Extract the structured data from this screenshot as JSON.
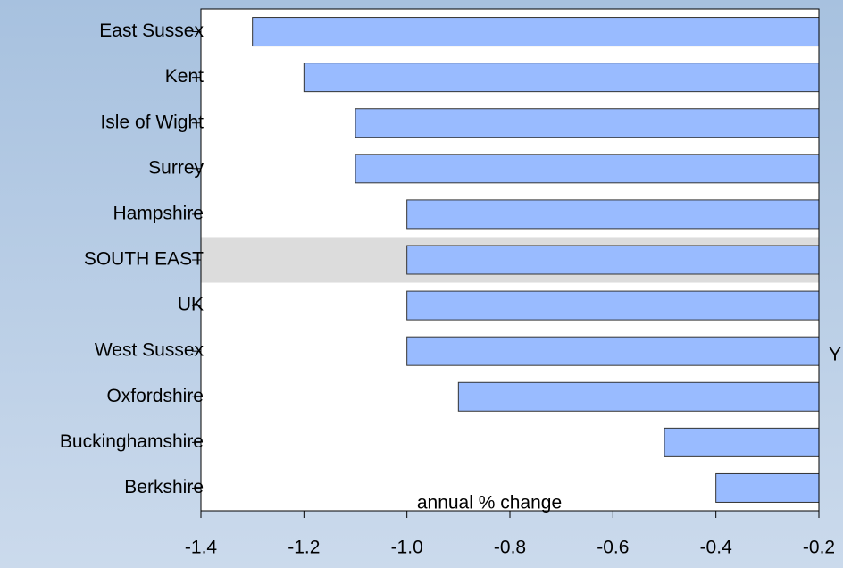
{
  "chart_data": {
    "type": "bar",
    "orientation": "horizontal",
    "categories": [
      "East Sussex",
      "Kent",
      "Isle of Wight",
      "Surrey",
      "Hampshire",
      "SOUTH EAST",
      "UK",
      "West Sussex",
      "Oxfordshire",
      "Buckinghamshire",
      "Berkshire"
    ],
    "values": [
      -1.3,
      -1.2,
      -1.1,
      -1.1,
      -1.0,
      -1.0,
      -1.0,
      -1.0,
      -0.9,
      -0.5,
      -0.4
    ],
    "color": "#99bbff",
    "highlight": "SOUTH EAST",
    "xlim": [
      -1.4,
      -0.2
    ],
    "xticks": [
      -1.4,
      -1.2,
      {
        "value": -1.0,
        "label": "-1.0"
      },
      -0.8,
      -0.6,
      -0.4,
      -0.2
    ],
    "annotations": [
      "annual % change",
      "Y"
    ]
  }
}
